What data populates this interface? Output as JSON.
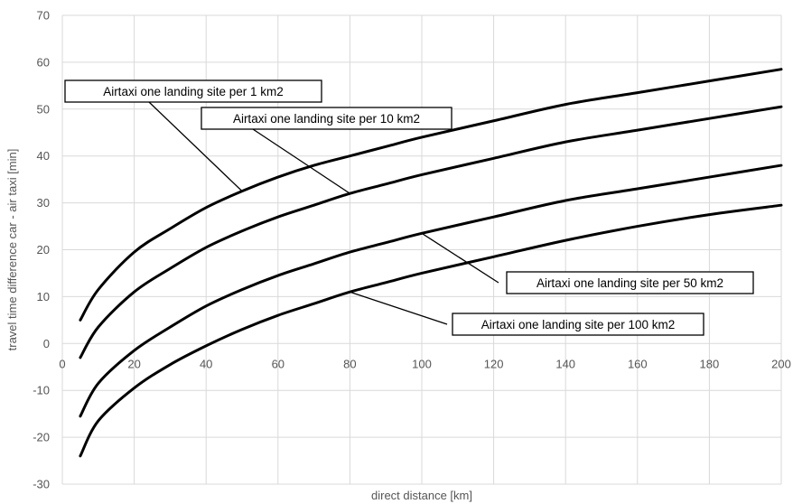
{
  "chart_data": {
    "type": "line",
    "xlabel": "direct distance [km]",
    "ylabel": "travel time difference car - air taxi [min]",
    "xlim": [
      0,
      200
    ],
    "ylim": [
      -30,
      70
    ],
    "xticks": [
      0,
      20,
      40,
      60,
      80,
      100,
      120,
      140,
      160,
      180,
      200
    ],
    "yticks": [
      -30,
      -20,
      -10,
      0,
      10,
      20,
      30,
      40,
      50,
      60,
      70
    ],
    "grid": true,
    "series": [
      {
        "name": "Airtaxi one landing site per 1 km2",
        "x": [
          5,
          10,
          20,
          30,
          40,
          50,
          60,
          70,
          80,
          90,
          100,
          120,
          140,
          160,
          180,
          200
        ],
        "values": [
          5,
          11.5,
          19.5,
          24.5,
          29,
          32.5,
          35.5,
          38,
          40,
          42,
          44,
          47.5,
          51,
          53.5,
          56,
          58.5
        ]
      },
      {
        "name": "Airtaxi one landing site per 10 km2",
        "x": [
          5,
          10,
          20,
          30,
          40,
          50,
          60,
          70,
          80,
          90,
          100,
          120,
          140,
          160,
          180,
          200
        ],
        "values": [
          -3,
          3.5,
          11,
          16,
          20.5,
          24,
          27,
          29.5,
          32,
          34,
          36,
          39.5,
          43,
          45.5,
          48,
          50.5
        ]
      },
      {
        "name": "Airtaxi one landing site per 50 km2",
        "x": [
          5,
          10,
          20,
          30,
          40,
          50,
          60,
          70,
          80,
          90,
          100,
          120,
          140,
          160,
          180,
          200
        ],
        "values": [
          -15.5,
          -8.5,
          -1.5,
          3.5,
          8,
          11.5,
          14.5,
          17,
          19.5,
          21.5,
          23.5,
          27,
          30.5,
          33,
          35.5,
          38
        ]
      },
      {
        "name": "Airtaxi one landing site per 100 km2",
        "x": [
          5,
          10,
          20,
          30,
          40,
          50,
          60,
          70,
          80,
          90,
          100,
          120,
          140,
          160,
          180,
          200
        ],
        "values": [
          -24,
          -16.5,
          -9.5,
          -4.5,
          -0.5,
          3,
          6,
          8.5,
          11,
          13,
          15,
          18.5,
          22,
          25,
          27.5,
          29.5
        ]
      }
    ],
    "colors": {
      "line": "#000000",
      "grid": "#d9d9d9",
      "text": "#555555"
    }
  }
}
